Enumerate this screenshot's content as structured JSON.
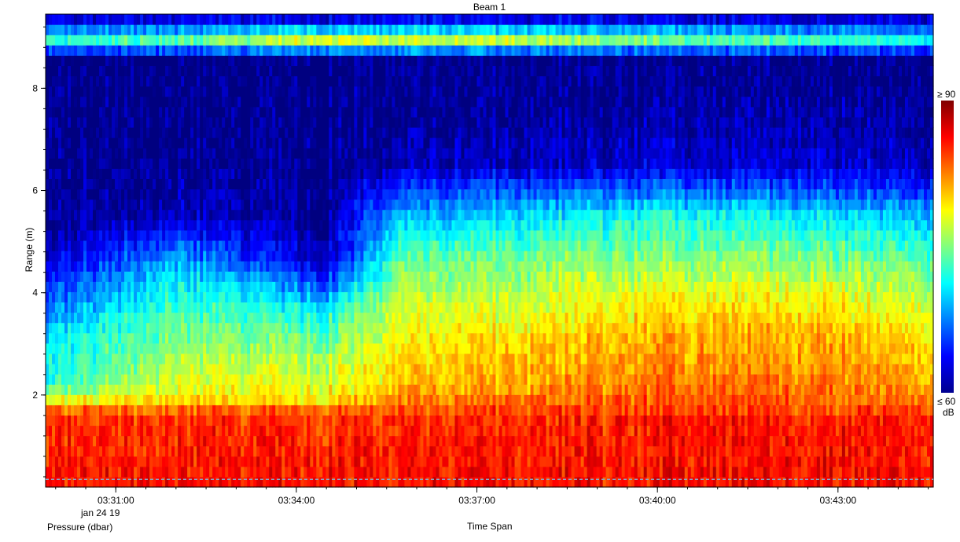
{
  "chart_data": {
    "type": "heatmap",
    "title": "Beam 1",
    "xlabel": "Time Span",
    "ylabel": "Range (m)",
    "secondary_label": "Pressure (dbar)",
    "date_label": "jan 24 19",
    "x_ticks": [
      "03:31:00",
      "03:34:00",
      "03:37:00",
      "03:40:00",
      "03:43:00"
    ],
    "x_range": [
      "03:29:50",
      "03:44:35"
    ],
    "y_ticks": [
      2,
      4,
      6,
      8
    ],
    "ylim": [
      0.2,
      9.45
    ],
    "colorbar": {
      "max_label": "≥ 90",
      "min_label": "≤ 60",
      "unit": "dB",
      "range": [
        60,
        90
      ],
      "colormap": "jet"
    },
    "pressure_line": {
      "value": 0.35,
      "style": "dashed",
      "color": "#88a8c8"
    },
    "intensity_profiles": [
      {
        "time": "03:29:50",
        "profile": [
          [
            0.2,
            86
          ],
          [
            1.55,
            85
          ],
          [
            1.75,
            83
          ],
          [
            1.95,
            77
          ],
          [
            2.3,
            72
          ],
          [
            3.0,
            71
          ],
          [
            4.0,
            66
          ],
          [
            4.6,
            63
          ],
          [
            5.2,
            61
          ],
          [
            6.5,
            60.5
          ],
          [
            8.6,
            60
          ],
          [
            8.85,
            70
          ],
          [
            9.0,
            74
          ],
          [
            9.2,
            66
          ],
          [
            9.45,
            61
          ]
        ]
      },
      {
        "time": "03:32:00",
        "profile": [
          [
            0.2,
            86
          ],
          [
            1.55,
            85
          ],
          [
            1.75,
            83
          ],
          [
            1.95,
            79
          ],
          [
            2.8,
            76
          ],
          [
            3.8,
            73
          ],
          [
            4.3,
            71
          ],
          [
            5.0,
            66
          ],
          [
            5.5,
            62
          ],
          [
            6.5,
            60.5
          ],
          [
            8.6,
            60
          ],
          [
            8.85,
            71
          ],
          [
            9.0,
            75
          ],
          [
            9.2,
            66
          ],
          [
            9.45,
            61
          ]
        ]
      },
      {
        "time": "03:34:30",
        "profile": [
          [
            0.2,
            86
          ],
          [
            1.55,
            85
          ],
          [
            1.75,
            83
          ],
          [
            1.95,
            79
          ],
          [
            2.8,
            76
          ],
          [
            3.6,
            72
          ],
          [
            4.2,
            66
          ],
          [
            4.6,
            62
          ],
          [
            5.5,
            60.5
          ],
          [
            6.5,
            60.2
          ],
          [
            8.6,
            60
          ],
          [
            8.85,
            74
          ],
          [
            9.0,
            80
          ],
          [
            9.2,
            67
          ],
          [
            9.45,
            61
          ]
        ]
      },
      {
        "time": "03:35:40",
        "profile": [
          [
            0.2,
            86
          ],
          [
            1.55,
            85
          ],
          [
            1.75,
            83
          ],
          [
            2.2,
            80
          ],
          [
            2.9,
            79
          ],
          [
            3.8,
            77
          ],
          [
            4.6,
            74
          ],
          [
            5.5,
            69
          ],
          [
            6.0,
            65
          ],
          [
            6.5,
            61.5
          ],
          [
            7.5,
            60.5
          ],
          [
            8.6,
            60
          ],
          [
            8.85,
            73
          ],
          [
            9.0,
            79
          ],
          [
            9.2,
            67
          ],
          [
            9.45,
            61
          ]
        ]
      },
      {
        "time": "03:37:30",
        "profile": [
          [
            0.2,
            86
          ],
          [
            1.55,
            85
          ],
          [
            1.75,
            84
          ],
          [
            2.2,
            81
          ],
          [
            3.0,
            80
          ],
          [
            3.8,
            77
          ],
          [
            4.6,
            75
          ],
          [
            5.5,
            70
          ],
          [
            6.0,
            66
          ],
          [
            6.5,
            62
          ],
          [
            7.5,
            60.5
          ],
          [
            8.6,
            60
          ],
          [
            8.85,
            73
          ],
          [
            9.0,
            79
          ],
          [
            9.2,
            67
          ],
          [
            9.45,
            61
          ]
        ]
      },
      {
        "time": "03:40:00",
        "profile": [
          [
            0.2,
            86
          ],
          [
            1.55,
            85.5
          ],
          [
            1.75,
            84
          ],
          [
            2.5,
            82
          ],
          [
            3.2,
            81
          ],
          [
            3.8,
            79
          ],
          [
            4.6,
            75.5
          ],
          [
            5.5,
            72
          ],
          [
            6.0,
            67
          ],
          [
            6.5,
            62.5
          ],
          [
            7.5,
            61
          ],
          [
            8.6,
            60
          ],
          [
            8.85,
            71
          ],
          [
            9.0,
            76
          ],
          [
            9.2,
            66
          ],
          [
            9.45,
            61
          ]
        ]
      },
      {
        "time": "03:42:30",
        "profile": [
          [
            0.2,
            86
          ],
          [
            1.55,
            85.5
          ],
          [
            1.75,
            84
          ],
          [
            2.5,
            82
          ],
          [
            3.2,
            81
          ],
          [
            3.8,
            79
          ],
          [
            4.6,
            75.5
          ],
          [
            5.5,
            71
          ],
          [
            6.0,
            66
          ],
          [
            6.5,
            62.5
          ],
          [
            7.5,
            61
          ],
          [
            8.6,
            60
          ],
          [
            8.85,
            70
          ],
          [
            9.0,
            74
          ],
          [
            9.2,
            65
          ],
          [
            9.45,
            61
          ]
        ]
      },
      {
        "time": "03:44:35",
        "profile": [
          [
            0.2,
            86
          ],
          [
            1.55,
            85.5
          ],
          [
            1.75,
            84
          ],
          [
            2.2,
            81
          ],
          [
            3.0,
            80
          ],
          [
            3.8,
            77
          ],
          [
            4.6,
            74
          ],
          [
            5.5,
            69
          ],
          [
            6.0,
            65
          ],
          [
            6.5,
            62
          ],
          [
            7.5,
            60.5
          ],
          [
            8.6,
            60
          ],
          [
            8.85,
            69
          ],
          [
            9.0,
            73
          ],
          [
            9.2,
            65
          ],
          [
            9.45,
            61
          ]
        ]
      }
    ]
  }
}
